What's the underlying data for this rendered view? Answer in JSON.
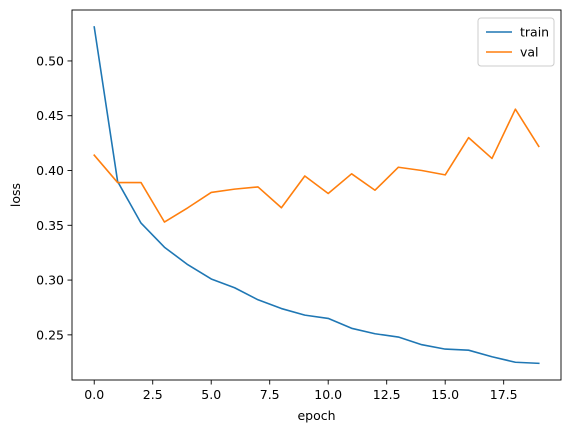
{
  "chart_data": {
    "type": "line",
    "title": "",
    "xlabel": "epoch",
    "ylabel": "loss",
    "xlim": [
      -0.95,
      19.95
    ],
    "ylim": [
      0.2088,
      0.5465
    ],
    "xticks": [
      0.0,
      2.5,
      5.0,
      7.5,
      10.0,
      12.5,
      15.0,
      17.5
    ],
    "xtick_labels": [
      "0.0",
      "2.5",
      "5.0",
      "7.5",
      "10.0",
      "12.5",
      "15.0",
      "17.5"
    ],
    "yticks": [
      0.25,
      0.3,
      0.35,
      0.4,
      0.45,
      0.5
    ],
    "ytick_labels": [
      "0.25",
      "0.30",
      "0.35",
      "0.40",
      "0.45",
      "0.50"
    ],
    "grid": false,
    "legend_position": "top-right",
    "x": [
      0,
      1,
      2,
      3,
      4,
      5,
      6,
      7,
      8,
      9,
      10,
      11,
      12,
      13,
      14,
      15,
      16,
      17,
      18,
      19
    ],
    "series": [
      {
        "name": "train",
        "color": "#1f77b4",
        "values": [
          0.531,
          0.39,
          0.352,
          0.33,
          0.314,
          0.301,
          0.293,
          0.282,
          0.274,
          0.268,
          0.265,
          0.256,
          0.251,
          0.248,
          0.241,
          0.237,
          0.236,
          0.23,
          0.225,
          0.224
        ]
      },
      {
        "name": "val",
        "color": "#ff7f0e",
        "values": [
          0.414,
          0.389,
          0.389,
          0.353,
          0.366,
          0.38,
          0.383,
          0.385,
          0.366,
          0.395,
          0.379,
          0.397,
          0.382,
          0.403,
          0.4,
          0.396,
          0.43,
          0.411,
          0.456,
          0.422
        ]
      }
    ]
  }
}
